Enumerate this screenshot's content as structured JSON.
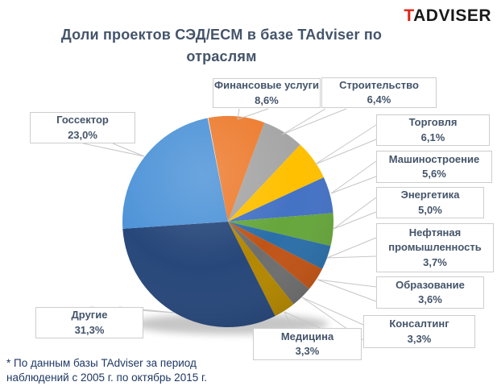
{
  "logo": {
    "t": "T",
    "rest": "ADVISER"
  },
  "chart": {
    "title": "Доли проектов СЭД/ECM в базе TAdviser по отраслям",
    "footnote_line1": "* По данным базы TAdviser за период",
    "footnote_line2": "наблюдений с 2005 г. по октябрь 2015 г."
  },
  "chart_data": {
    "type": "pie",
    "title": "Доли проектов СЭД/ECM в базе TAdviser по отраслям",
    "unit": "%",
    "start_angle_deg": -10.75,
    "direction": "clockwise",
    "segments": [
      {
        "label": "Финансовые услуги",
        "value": 8.6,
        "pct_label": "8,6%",
        "color": "#ED7D31"
      },
      {
        "label": "Строительство",
        "value": 6.4,
        "pct_label": "6,4%",
        "color": "#A6A6A6"
      },
      {
        "label": "Торговля",
        "value": 6.1,
        "pct_label": "6,1%",
        "color": "#FFC000"
      },
      {
        "label": "Машиностроение",
        "value": 5.6,
        "pct_label": "5,6%",
        "color": "#4472C4"
      },
      {
        "label": "Энергетика",
        "value": 5.0,
        "pct_label": "5,0%",
        "color": "#66A63C"
      },
      {
        "label": "Нефтяная промышленность",
        "value": 3.7,
        "pct_label": "3,7%",
        "color": "#2B6FA8"
      },
      {
        "label": "Образование",
        "value": 3.6,
        "pct_label": "3,6%",
        "color": "#C05417"
      },
      {
        "label": "Консалтинг",
        "value": 3.3,
        "pct_label": "3,3%",
        "color": "#6E6E6E"
      },
      {
        "label": "Медицина",
        "value": 3.3,
        "pct_label": "3,3%",
        "color": "#B38700"
      },
      {
        "label": "Другие",
        "value": 31.3,
        "pct_label": "31,3%",
        "color": "#27477A"
      },
      {
        "label": "Госсектор",
        "value": 23.0,
        "pct_label": "23,0%",
        "color": "#4F94D8"
      }
    ]
  }
}
